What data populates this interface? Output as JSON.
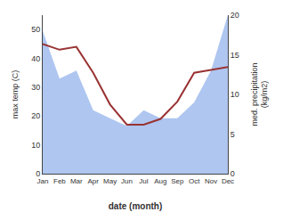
{
  "chart_data": {
    "type": "line",
    "categories": [
      "Jan",
      "Feb",
      "Mar",
      "Apr",
      "May",
      "Jun",
      "Jul",
      "Aug",
      "Sep",
      "Oct",
      "Nov",
      "Dec"
    ],
    "series": [
      {
        "type": "area",
        "axis": "y2",
        "color": "#aec6f0",
        "values": [
          18,
          12,
          13,
          8,
          7,
          6,
          8,
          7,
          7,
          9,
          13,
          20
        ]
      },
      {
        "type": "line",
        "axis": "y",
        "color": "#993333",
        "values": [
          45,
          43,
          44,
          35,
          24,
          17,
          17,
          19,
          25,
          35,
          36,
          37
        ]
      }
    ],
    "xlabel": "date (month)",
    "ylabel": "max temp (C)",
    "y2label": "med. precipitation\n(kg/m2)",
    "ylim": [
      0,
      55
    ],
    "yticks": [
      0,
      10,
      20,
      30,
      40,
      50
    ],
    "y2lim": [
      0,
      20
    ],
    "y2ticks": [
      0,
      5,
      10,
      15,
      20
    ],
    "grid": false
  }
}
